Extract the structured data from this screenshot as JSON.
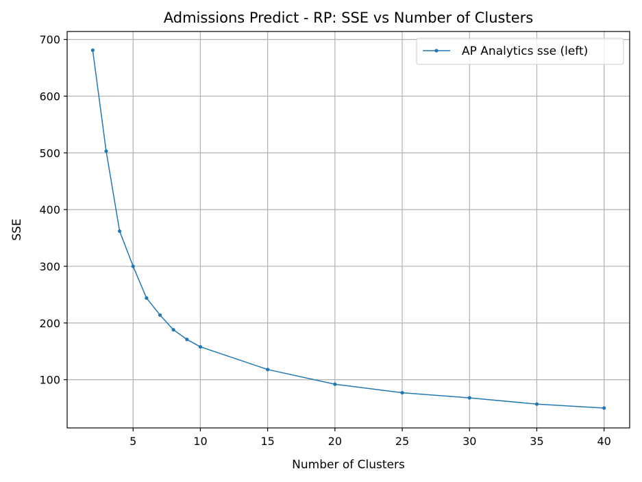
{
  "chart_data": {
    "type": "line",
    "title": "Admissions Predict - RP: SSE vs Number of Clusters",
    "xlabel": "Number of Clusters",
    "ylabel": "SSE",
    "xlim": [
      0.1,
      41.9
    ],
    "ylim": [
      15,
      714
    ],
    "xticks": [
      5,
      10,
      15,
      20,
      25,
      30,
      35,
      40
    ],
    "yticks": [
      100,
      200,
      300,
      400,
      500,
      600,
      700
    ],
    "grid": true,
    "legend_position": "top-right",
    "series": [
      {
        "name": "AP Analytics sse (left)",
        "color": "#1f77b4",
        "x": [
          2,
          3,
          4,
          5,
          6,
          7,
          8,
          9,
          10,
          15,
          20,
          25,
          30,
          35,
          40
        ],
        "y": [
          681,
          503,
          362,
          300,
          244,
          214,
          188,
          171,
          158,
          118,
          92,
          77,
          68,
          57,
          50
        ]
      }
    ]
  }
}
